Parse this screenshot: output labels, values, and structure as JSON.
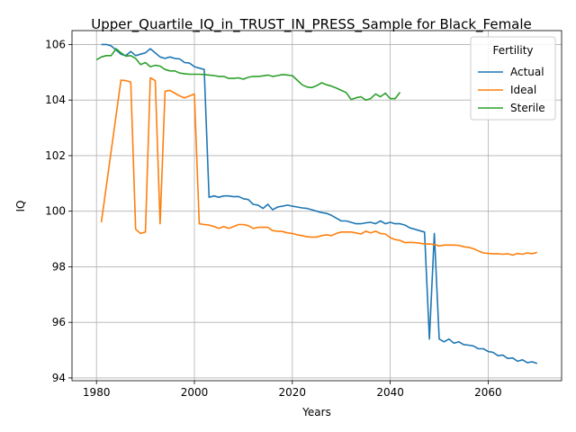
{
  "chart_data": {
    "type": "line",
    "title": "Upper_Quartile_IQ_in_TRUST_IN_PRESS_Sample for Black_Female",
    "xlabel": "Years",
    "ylabel": "IQ",
    "xlim": [
      1975,
      2075
    ],
    "ylim": [
      93.9,
      106.5
    ],
    "xticks": [
      1980,
      2000,
      2020,
      2040,
      2060
    ],
    "yticks": [
      94,
      96,
      98,
      100,
      102,
      104,
      106
    ],
    "grid": true,
    "legend": {
      "title": "Fertility",
      "placement": "top-right"
    },
    "series": [
      {
        "name": "Actual",
        "color": "#1f77b4",
        "x": [
          1981,
          1982,
          1983,
          1984,
          1985,
          1986,
          1987,
          1988,
          1989,
          1990,
          1991,
          1992,
          1993,
          1994,
          1995,
          1996,
          1997,
          1998,
          1999,
          2000,
          2001,
          2002,
          2003,
          2004,
          2005,
          2006,
          2007,
          2008,
          2009,
          2010,
          2011,
          2012,
          2013,
          2014,
          2015,
          2016,
          2017,
          2018,
          2019,
          2020,
          2021,
          2022,
          2023,
          2024,
          2025,
          2026,
          2027,
          2028,
          2029,
          2030,
          2031,
          2032,
          2033,
          2034,
          2035,
          2036,
          2037,
          2038,
          2039,
          2040,
          2041,
          2042,
          2043,
          2044,
          2045,
          2046,
          2047,
          2048,
          2049,
          2050,
          2051,
          2052,
          2053,
          2054,
          2055,
          2056,
          2057,
          2058,
          2059,
          2060,
          2061,
          2062,
          2063,
          2064,
          2065,
          2066,
          2067,
          2068,
          2069,
          2070
        ],
        "values": [
          106.0,
          106.0,
          105.95,
          105.8,
          105.65,
          105.6,
          105.75,
          105.6,
          105.65,
          105.7,
          105.85,
          105.7,
          105.55,
          105.5,
          105.55,
          105.5,
          105.48,
          105.35,
          105.33,
          105.2,
          105.15,
          105.1,
          100.5,
          100.55,
          100.5,
          100.55,
          100.55,
          100.52,
          100.53,
          100.45,
          100.42,
          100.25,
          100.22,
          100.1,
          100.25,
          100.05,
          100.15,
          100.18,
          100.22,
          100.18,
          100.15,
          100.12,
          100.1,
          100.05,
          100.0,
          99.95,
          99.92,
          99.85,
          99.75,
          99.65,
          99.65,
          99.6,
          99.55,
          99.55,
          99.58,
          99.6,
          99.55,
          99.65,
          99.55,
          99.6,
          99.55,
          99.55,
          99.5,
          99.4,
          99.35,
          99.3,
          99.25,
          95.4,
          99.2,
          95.4,
          95.3,
          95.4,
          95.25,
          95.3,
          95.2,
          95.18,
          95.15,
          95.05,
          95.05,
          94.95,
          94.92,
          94.8,
          94.82,
          94.7,
          94.72,
          94.6,
          94.65,
          94.55,
          94.58,
          94.52
        ]
      },
      {
        "name": "Ideal",
        "color": "#ff7f0e",
        "x": [
          1981,
          1985,
          1986,
          1987,
          1988,
          1989,
          1990,
          1991,
          1992,
          1993,
          1994,
          1995,
          1996,
          1997,
          1998,
          1999,
          2000,
          2001,
          2002,
          2003,
          2004,
          2005,
          2006,
          2007,
          2008,
          2009,
          2010,
          2011,
          2012,
          2013,
          2014,
          2015,
          2016,
          2017,
          2018,
          2019,
          2020,
          2021,
          2022,
          2023,
          2024,
          2025,
          2026,
          2027,
          2028,
          2029,
          2030,
          2031,
          2032,
          2033,
          2034,
          2035,
          2036,
          2037,
          2038,
          2039,
          2040,
          2041,
          2042,
          2043,
          2044,
          2045,
          2046,
          2047,
          2048,
          2049,
          2050,
          2051,
          2052,
          2053,
          2054,
          2055,
          2056,
          2057,
          2058,
          2059,
          2060,
          2061,
          2062,
          2063,
          2064,
          2065,
          2066,
          2067,
          2068,
          2069,
          2070
        ],
        "values": [
          99.6,
          104.72,
          104.7,
          104.65,
          99.35,
          99.2,
          99.25,
          104.8,
          104.7,
          99.55,
          104.32,
          104.35,
          104.25,
          104.15,
          104.08,
          104.15,
          104.22,
          99.55,
          99.52,
          99.5,
          99.45,
          99.38,
          99.45,
          99.38,
          99.45,
          99.52,
          99.52,
          99.48,
          99.38,
          99.42,
          99.42,
          99.42,
          99.3,
          99.28,
          99.27,
          99.22,
          99.2,
          99.15,
          99.12,
          99.08,
          99.07,
          99.07,
          99.12,
          99.15,
          99.12,
          99.2,
          99.25,
          99.25,
          99.25,
          99.22,
          99.18,
          99.28,
          99.22,
          99.28,
          99.2,
          99.18,
          99.05,
          98.98,
          98.95,
          98.87,
          98.88,
          98.87,
          98.85,
          98.82,
          98.82,
          98.8,
          98.75,
          98.78,
          98.78,
          98.78,
          98.77,
          98.72,
          98.7,
          98.65,
          98.57,
          98.5,
          98.48,
          98.47,
          98.47,
          98.45,
          98.47,
          98.42,
          98.48,
          98.45,
          98.5,
          98.47,
          98.52
        ]
      },
      {
        "name": "Sterile",
        "color": "#2ca02c",
        "x": [
          1980,
          1981,
          1982,
          1983,
          1984,
          1985,
          1986,
          1987,
          1988,
          1989,
          1990,
          1991,
          1992,
          1993,
          1994,
          1995,
          1996,
          1997,
          1998,
          1999,
          2000,
          2001,
          2002,
          2003,
          2004,
          2005,
          2006,
          2007,
          2008,
          2009,
          2010,
          2011,
          2012,
          2013,
          2014,
          2015,
          2016,
          2017,
          2018,
          2019,
          2020,
          2021,
          2022,
          2023,
          2024,
          2025,
          2026,
          2027,
          2028,
          2029,
          2030,
          2031,
          2032,
          2033,
          2034,
          2035,
          2036,
          2037,
          2038,
          2039,
          2040,
          2041,
          2042
        ],
        "values": [
          105.45,
          105.55,
          105.6,
          105.6,
          105.85,
          105.7,
          105.58,
          105.6,
          105.5,
          105.28,
          105.35,
          105.2,
          105.25,
          105.22,
          105.1,
          105.05,
          105.05,
          104.97,
          104.95,
          104.93,
          104.93,
          104.93,
          104.92,
          104.9,
          104.88,
          104.85,
          104.85,
          104.78,
          104.78,
          104.8,
          104.75,
          104.82,
          104.85,
          104.85,
          104.87,
          104.9,
          104.85,
          104.88,
          104.92,
          104.9,
          104.88,
          104.72,
          104.55,
          104.47,
          104.45,
          104.52,
          104.62,
          104.55,
          104.5,
          104.43,
          104.35,
          104.27,
          104.02,
          104.08,
          104.12,
          104.0,
          104.05,
          104.22,
          104.12,
          104.25,
          104.05,
          104.05,
          104.28
        ]
      }
    ]
  }
}
